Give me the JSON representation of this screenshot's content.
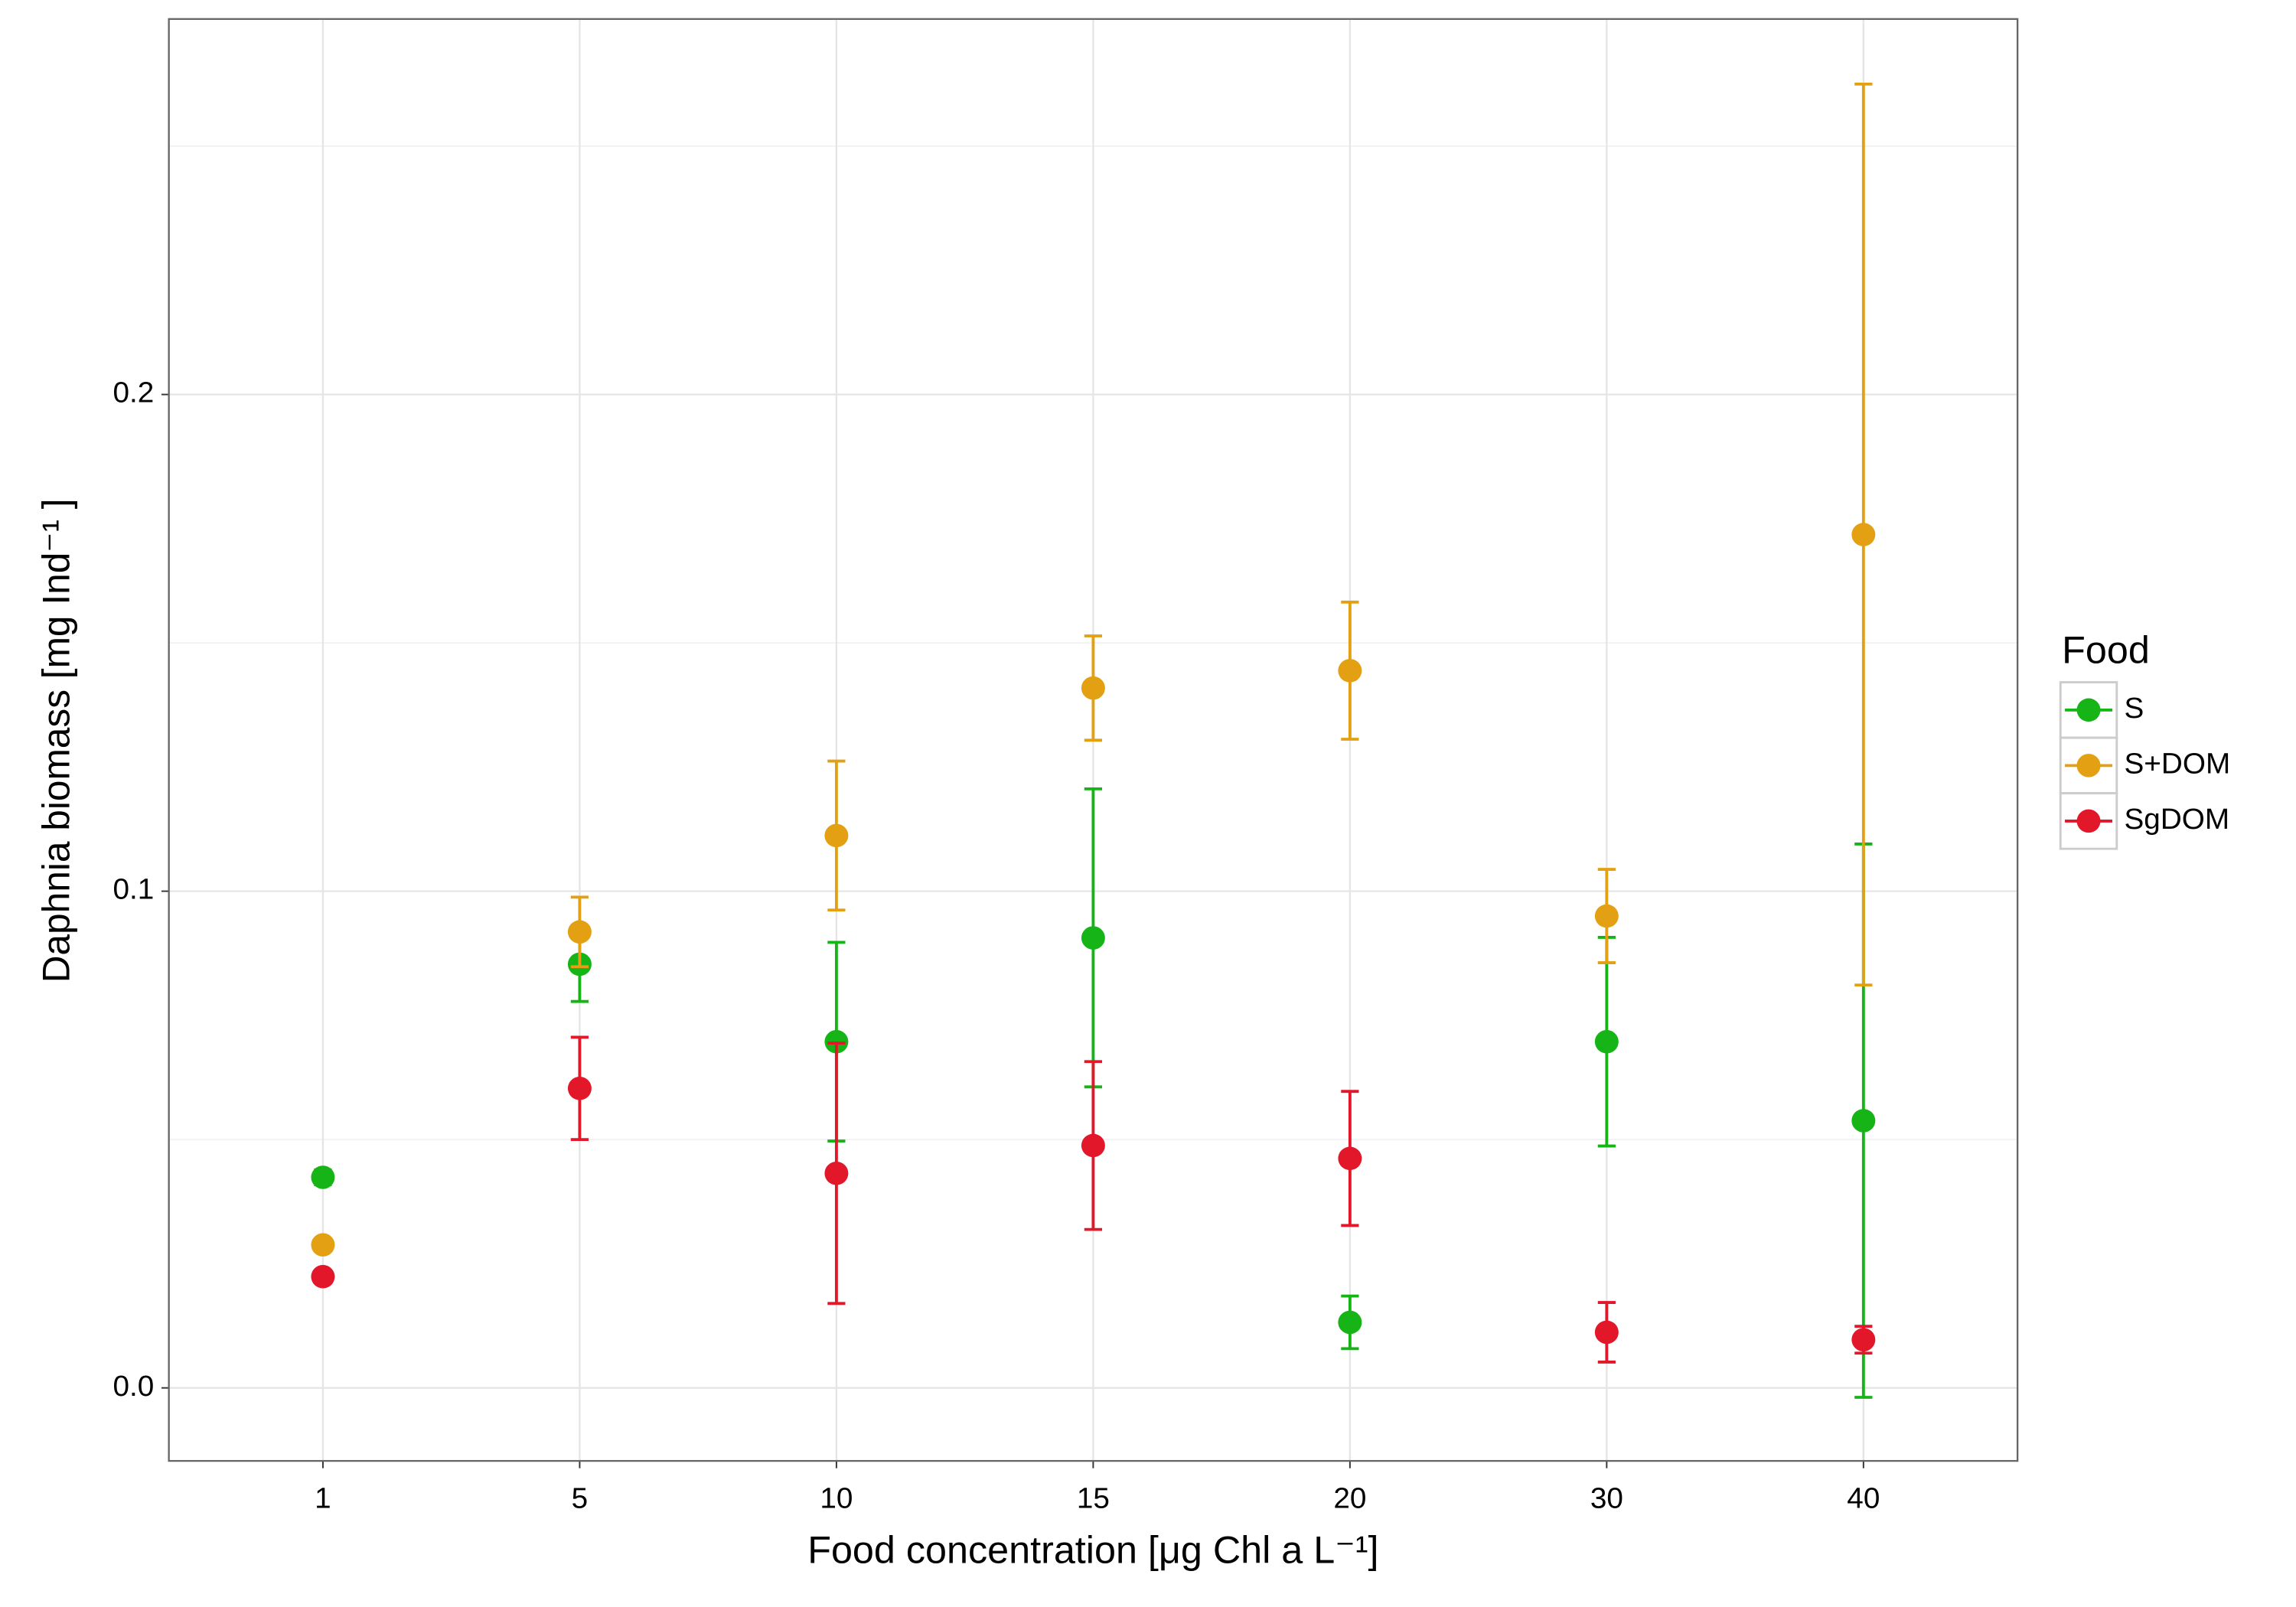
{
  "chart_data": {
    "type": "errorbar-scatter",
    "x_label": "Food concentration [μg Chl a L⁻¹]",
    "y_label": "Daphnia biomass [mg  Ind⁻¹ ]",
    "categories": [
      "1",
      "5",
      "10",
      "15",
      "20",
      "30",
      "40"
    ],
    "ylim": [
      -0.0147,
      0.2756
    ],
    "yticks": [
      {
        "value": 0,
        "label": "0.0"
      },
      0.1,
      0.2
    ],
    "minor_yticks": [
      0.05,
      0.15,
      0.25
    ],
    "grid": true,
    "legend_title": "Food",
    "legend_position": "right",
    "series": [
      {
        "name": "S",
        "color": "#16b416",
        "values": [
          0.0424,
          0.0853,
          0.0697,
          0.0906,
          0.0132,
          0.0697,
          0.0538
        ],
        "errors": [
          0.0015,
          0.0075,
          0.02,
          0.03,
          0.0053,
          0.021,
          0.0557
        ]
      },
      {
        "name": "S+DOM",
        "color": "#e2a012",
        "values": [
          0.0288,
          0.0918,
          0.1112,
          0.1409,
          0.1444,
          0.095,
          0.1718
        ],
        "errors": [
          0.001,
          0.007,
          0.015,
          0.0105,
          0.0138,
          0.0094,
          0.0907
        ]
      },
      {
        "name": "SgDOM",
        "color": "#e3172a",
        "values": [
          0.0224,
          0.0603,
          0.0432,
          0.0488,
          0.0462,
          0.0112,
          0.0097
        ],
        "errors": [
          0.001,
          0.0103,
          0.0262,
          0.0169,
          0.0135,
          0.006,
          0.0027
        ]
      }
    ]
  }
}
